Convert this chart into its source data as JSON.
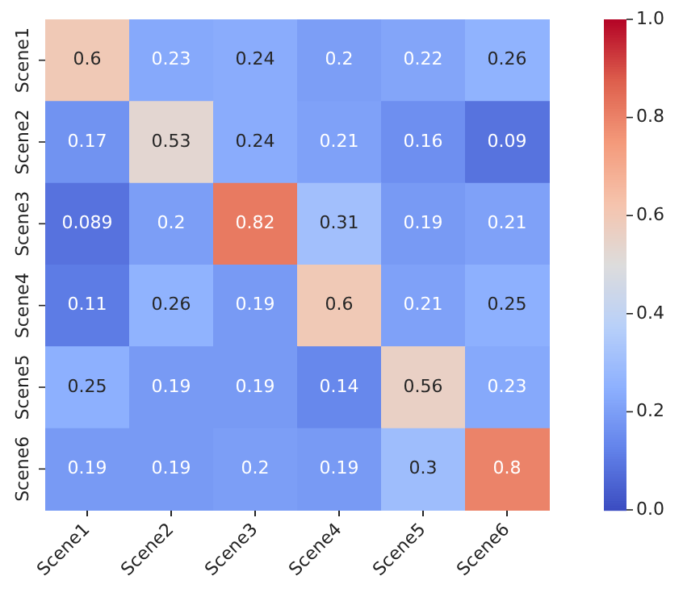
{
  "chart_data": {
    "type": "heatmap",
    "categories": [
      "Scene1",
      "Scene2",
      "Scene3",
      "Scene4",
      "Scene5",
      "Scene6"
    ],
    "y_categories": [
      "Scene1",
      "Scene2",
      "Scene3",
      "Scene4",
      "Scene5",
      "Scene6"
    ],
    "cells": [
      [
        0.6,
        0.23,
        0.24,
        0.2,
        0.22,
        0.26
      ],
      [
        0.17,
        0.53,
        0.24,
        0.21,
        0.16,
        0.09
      ],
      [
        0.089,
        0.2,
        0.82,
        0.31,
        0.19,
        0.21
      ],
      [
        0.11,
        0.26,
        0.19,
        0.6,
        0.21,
        0.25
      ],
      [
        0.25,
        0.19,
        0.19,
        0.14,
        0.56,
        0.23
      ],
      [
        0.19,
        0.19,
        0.2,
        0.19,
        0.3,
        0.8
      ]
    ],
    "clim": [
      0,
      1
    ],
    "cticks": [
      {
        "value": 0,
        "label": "0.0"
      },
      0.2,
      0.4,
      0.6,
      0.8,
      {
        "value": 1,
        "label": "1.0"
      }
    ],
    "data_labels": true
  }
}
